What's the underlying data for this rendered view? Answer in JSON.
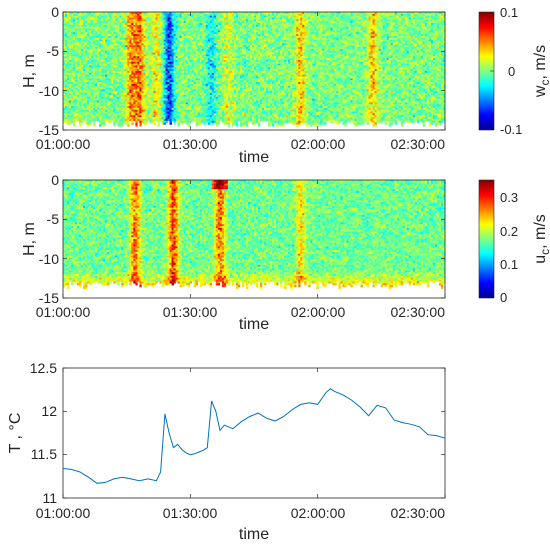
{
  "chart_data": [
    {
      "type": "heatmap",
      "title": "",
      "xlabel": "time",
      "ylabel": "H, m",
      "x_ticks": [
        "01:00:00",
        "01:30:00",
        "02:00:00",
        "02:30:00"
      ],
      "xlim": [
        "01:00:00",
        "02:30:00"
      ],
      "y_ticks": [
        "0",
        "-5",
        "-10",
        "-15"
      ],
      "ylim": [
        -15,
        0
      ],
      "colorbar": {
        "label_main": "w",
        "label_sub": "c",
        "label_unit": ", m/s",
        "range": [
          -0.1,
          0.1
        ],
        "ticks": [
          "0.1",
          "0",
          "-0.1"
        ],
        "colormap": "jet"
      },
      "base_value": 0.0,
      "features": [
        {
          "type": "column",
          "time": "01:16:00",
          "value": 0.05
        },
        {
          "type": "column",
          "time": "01:25:00",
          "value": -0.07
        },
        {
          "type": "column",
          "time": "01:22:00",
          "value": 0.03
        },
        {
          "type": "column",
          "time": "01:39:00",
          "value": 0.02
        },
        {
          "type": "column",
          "time": "01:56:00",
          "value": 0.04
        },
        {
          "type": "column",
          "time": "02:13:00",
          "value": 0.04
        },
        {
          "type": "column",
          "time": "01:35:00",
          "value": -0.03
        },
        {
          "type": "column",
          "time": "01:18:00",
          "value": 0.06
        }
      ],
      "bottom_boundary_m": -14.2
    },
    {
      "type": "heatmap",
      "title": "",
      "xlabel": "time",
      "ylabel": "H, m",
      "x_ticks": [
        "01:00:00",
        "01:30:00",
        "02:00:00",
        "02:30:00"
      ],
      "xlim": [
        "01:00:00",
        "02:30:00"
      ],
      "y_ticks": [
        "0",
        "-5",
        "-10",
        "-15"
      ],
      "ylim": [
        -15,
        0
      ],
      "colorbar": {
        "label_main": "u",
        "label_sub": "c",
        "label_unit": ", m/s",
        "range": [
          0,
          0.35
        ],
        "ticks": [
          "0.3",
          "0.2",
          "0.1",
          "0"
        ],
        "colormap": "jet"
      },
      "base_value": 0.17,
      "features": [
        {
          "type": "column",
          "time": "01:26:00",
          "value": 0.3
        },
        {
          "type": "column",
          "time": "01:37:00",
          "value": 0.28
        },
        {
          "type": "column",
          "time": "01:17:00",
          "value": 0.28
        },
        {
          "type": "column",
          "time": "01:56:00",
          "value": 0.23
        }
      ],
      "bottom_boundary_m": -13.3
    },
    {
      "type": "line",
      "title": "",
      "xlabel": "time",
      "ylabel": "T , °C",
      "x_ticks": [
        "01:00:00",
        "01:30:00",
        "02:00:00",
        "02:30:00"
      ],
      "xlim": [
        "01:00:00",
        "02:30:00"
      ],
      "y_ticks": [
        "11",
        "11.5",
        "12",
        "12.5"
      ],
      "ylim": [
        11,
        12.5
      ],
      "line_color": "#0072BD",
      "x_minutes_after_01_00": [
        0,
        2,
        4,
        6,
        8,
        10,
        12,
        14,
        16,
        18,
        20,
        22,
        23,
        24,
        25,
        26,
        27,
        28,
        29,
        30,
        31,
        32,
        33,
        34,
        35,
        36,
        37,
        38,
        40,
        42,
        44,
        46,
        48,
        50,
        52,
        54,
        56,
        58,
        60,
        62,
        63,
        64,
        66,
        68,
        70,
        72,
        74,
        76,
        78,
        80,
        82,
        84,
        86,
        88,
        90
      ],
      "values": [
        11.34,
        11.33,
        11.3,
        11.24,
        11.17,
        11.18,
        11.22,
        11.24,
        11.22,
        11.2,
        11.22,
        11.2,
        11.3,
        11.97,
        11.75,
        11.58,
        11.62,
        11.56,
        11.52,
        11.5,
        11.51,
        11.53,
        11.55,
        11.58,
        12.12,
        12.0,
        11.78,
        11.84,
        11.8,
        11.88,
        11.94,
        11.98,
        11.92,
        11.89,
        11.94,
        12.02,
        12.08,
        12.1,
        12.08,
        12.22,
        12.26,
        12.23,
        12.19,
        12.13,
        12.05,
        11.95,
        12.07,
        12.04,
        11.9,
        11.87,
        11.85,
        11.82,
        11.73,
        11.72,
        11.69
      ]
    }
  ]
}
